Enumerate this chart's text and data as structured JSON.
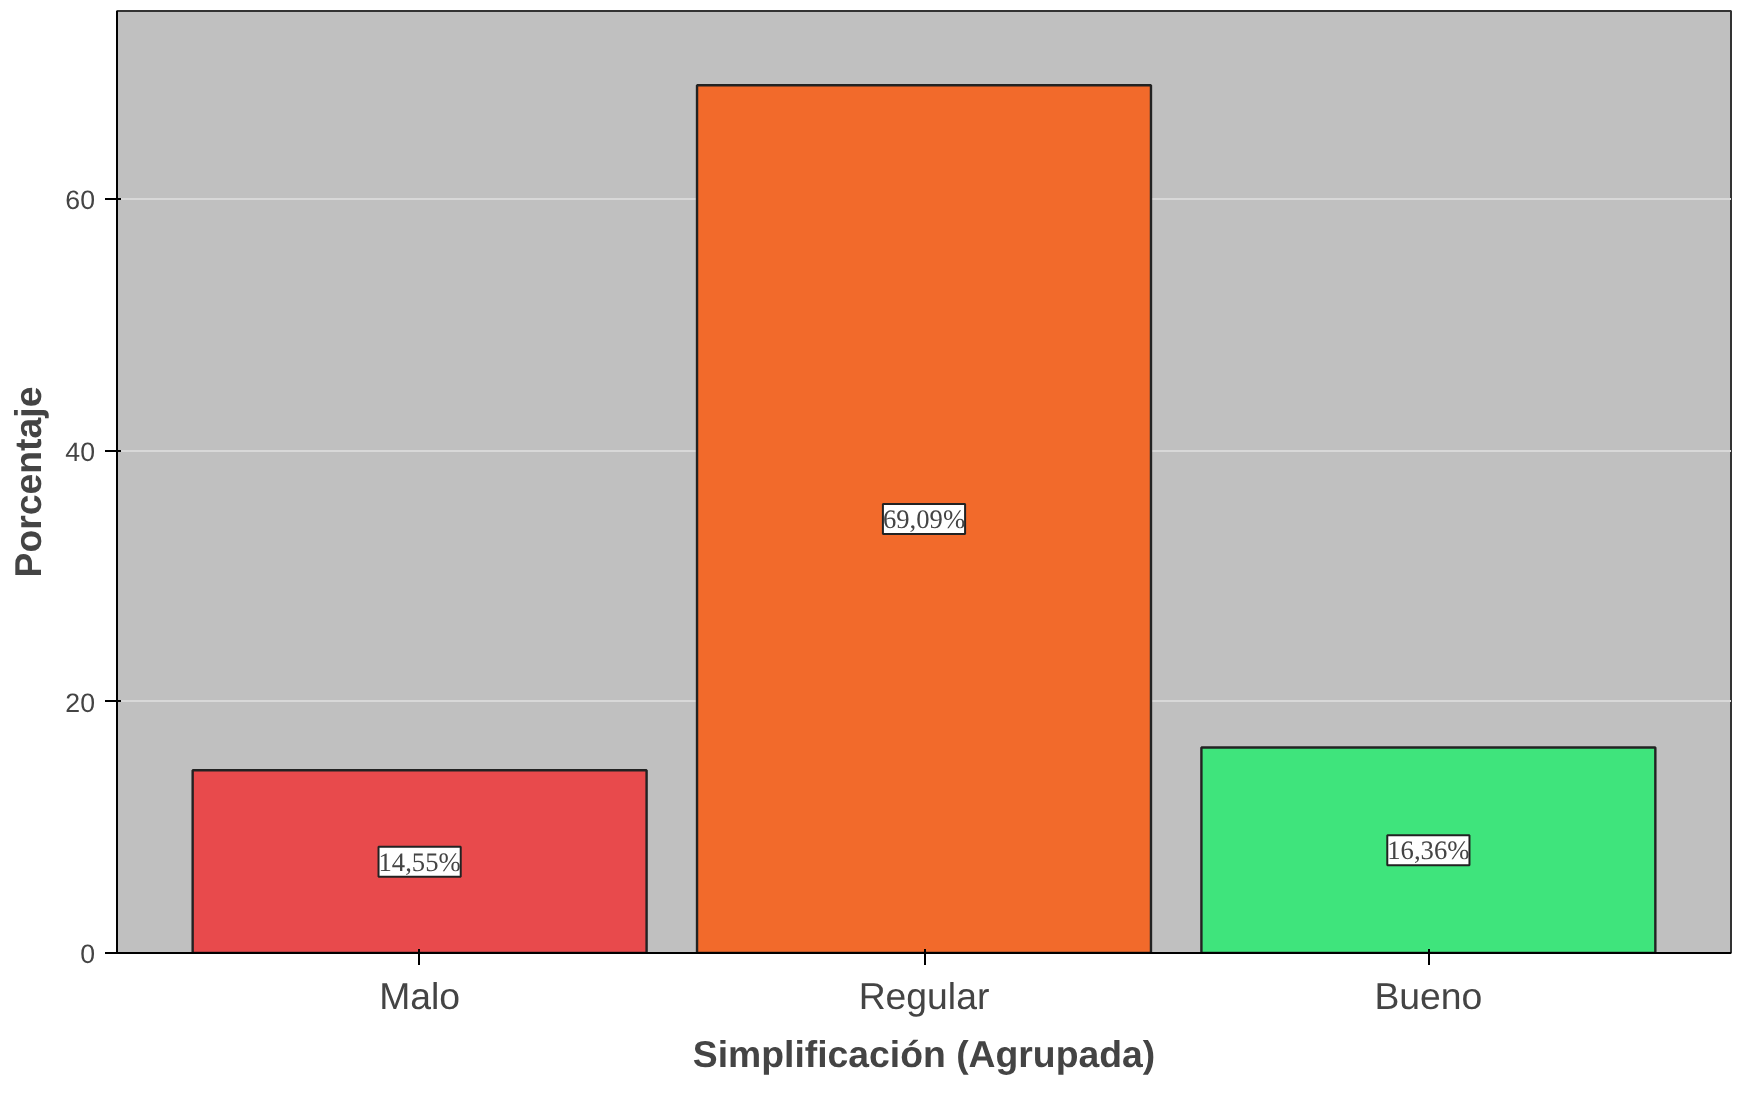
{
  "chart_data": {
    "type": "bar",
    "xlabel": "Simplificación (Agrupada)",
    "ylabel": "Porcentaje",
    "categories": [
      "Malo",
      "Regular",
      "Bueno"
    ],
    "values": [
      14.55,
      69.09,
      16.36
    ],
    "colors": [
      "#e84a4c",
      "#f26a2b",
      "#3fe47c"
    ],
    "value_labels": [
      "14,55%",
      "69,09%",
      "16,36%"
    ],
    "ylim": [
      0,
      75
    ],
    "yticks": [
      0,
      20,
      40,
      60
    ],
    "grid": "y"
  }
}
